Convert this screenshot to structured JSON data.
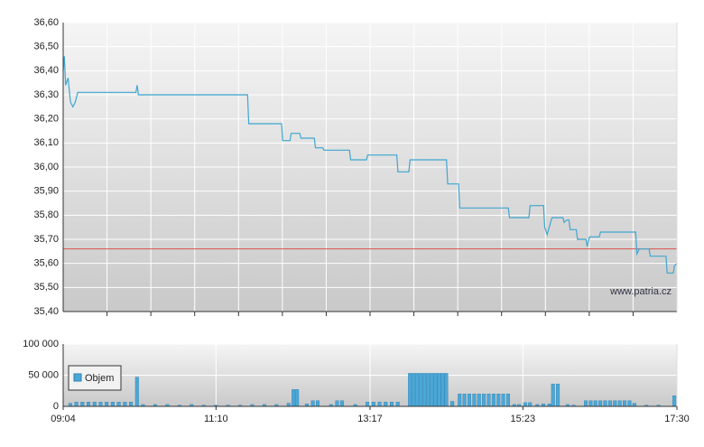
{
  "chart_data": [
    {
      "type": "line",
      "watermark": "www.patria.cz",
      "xlim": [
        "09:04",
        "17:30"
      ],
      "ylim": [
        35.4,
        36.6
      ],
      "yticks": [
        {
          "value": 35.4,
          "label": "35,40"
        },
        {
          "value": 35.5,
          "label": "35,50"
        },
        {
          "value": 35.6,
          "label": "35,60"
        },
        {
          "value": 35.7,
          "label": "35,70"
        },
        {
          "value": 35.8,
          "label": "35,80"
        },
        {
          "value": 35.9,
          "label": "35,90"
        },
        {
          "value": 36.0,
          "label": "36,00"
        },
        {
          "value": 36.1,
          "label": "36,10"
        },
        {
          "value": 36.2,
          "label": "36,20"
        },
        {
          "value": 36.3,
          "label": "36,30"
        },
        {
          "value": 36.4,
          "label": "36,40"
        },
        {
          "value": 36.5,
          "label": "36,50"
        },
        {
          "value": 36.6,
          "label": "36,60"
        }
      ],
      "reference_line": 35.66,
      "reference_color": "#d9534f",
      "grid": true,
      "x": [
        "09:04",
        "09:05",
        "09:06",
        "09:08",
        "09:10",
        "09:12",
        "09:14",
        "09:16",
        "10:04",
        "10:05",
        "10:06",
        "11:36",
        "11:37",
        "12:04",
        "12:05",
        "12:11",
        "12:12",
        "12:19",
        "12:20",
        "12:31",
        "12:32",
        "12:38",
        "12:39",
        "13:00",
        "13:01",
        "13:14",
        "13:15",
        "13:39",
        "13:40",
        "13:49",
        "13:50",
        "14:20",
        "14:21",
        "14:30",
        "14:31",
        "15:11",
        "15:12",
        "15:28",
        "15:29",
        "15:40",
        "15:41",
        "15:43",
        "15:47",
        "15:56",
        "15:57",
        "15:59",
        "16:01",
        "16:02",
        "16:07",
        "16:08",
        "16:15",
        "16:16",
        "16:18",
        "16:26",
        "16:27",
        "16:56",
        "16:57",
        "16:59",
        "17:07",
        "17:08",
        "17:21",
        "17:22",
        "17:27",
        "17:28",
        "17:30"
      ],
      "series": [
        {
          "color": "#3ea6d0",
          "values": [
            36.4,
            36.46,
            36.34,
            36.37,
            36.27,
            36.25,
            36.27,
            36.31,
            36.31,
            36.34,
            36.3,
            36.3,
            36.18,
            36.18,
            36.11,
            36.11,
            36.14,
            36.14,
            36.12,
            36.12,
            36.08,
            36.08,
            36.07,
            36.07,
            36.03,
            36.03,
            36.05,
            36.05,
            35.98,
            35.98,
            36.03,
            36.03,
            35.93,
            35.93,
            35.83,
            35.83,
            35.79,
            35.79,
            35.84,
            35.84,
            35.75,
            35.72,
            35.79,
            35.79,
            35.77,
            35.78,
            35.78,
            35.74,
            35.74,
            35.7,
            35.7,
            35.67,
            35.71,
            35.71,
            35.73,
            35.73,
            35.64,
            35.66,
            35.66,
            35.63,
            35.63,
            35.56,
            35.56,
            35.59,
            35.6
          ]
        }
      ]
    },
    {
      "type": "bar",
      "xlim": [
        "09:04",
        "17:30"
      ],
      "xticks": [
        "09:04",
        "11:10",
        "13:17",
        "15:23",
        "17:30"
      ],
      "ylim": [
        0,
        100000
      ],
      "yticks": [
        0,
        {
          "value": 50000,
          "label": "50 000"
        },
        {
          "value": 100000,
          "label": "100 000"
        }
      ],
      "grid": true,
      "x": [
        "09:10",
        "09:15",
        "09:20",
        "09:25",
        "09:30",
        "09:35",
        "09:40",
        "09:45",
        "09:50",
        "09:55",
        "10:00",
        "10:05",
        "10:10",
        "10:20",
        "10:30",
        "10:40",
        "10:50",
        "11:00",
        "11:10",
        "11:20",
        "11:30",
        "11:40",
        "11:50",
        "12:00",
        "12:10",
        "12:14",
        "12:17",
        "12:25",
        "12:30",
        "12:34",
        "12:45",
        "12:50",
        "12:54",
        "13:05",
        "13:15",
        "13:20",
        "13:25",
        "13:30",
        "13:35",
        "13:40",
        "13:50",
        "13:53",
        "13:56",
        "13:59",
        "14:02",
        "14:05",
        "14:08",
        "14:11",
        "14:14",
        "14:17",
        "14:20",
        "14:25",
        "14:31",
        "14:35",
        "14:39",
        "14:43",
        "14:47",
        "14:51",
        "14:55",
        "14:59",
        "15:03",
        "15:07",
        "15:11",
        "15:16",
        "15:20",
        "15:25",
        "15:29",
        "15:35",
        "15:40",
        "15:45",
        "15:48",
        "15:52",
        "16:00",
        "16:05",
        "16:15",
        "16:19",
        "16:23",
        "16:27",
        "16:31",
        "16:35",
        "16:39",
        "16:43",
        "16:47",
        "16:51",
        "16:55",
        "17:05",
        "17:15",
        "17:28"
      ],
      "series": [
        {
          "name": "Objem",
          "color": "#4aa8d8",
          "values": [
            5000,
            7000,
            7000,
            7000,
            7000,
            7000,
            7000,
            7000,
            7000,
            7000,
            7000,
            47000,
            3000,
            3000,
            3000,
            2000,
            3000,
            2000,
            2000,
            2000,
            2000,
            3000,
            3000,
            3000,
            5000,
            27000,
            27000,
            4000,
            9000,
            9000,
            3000,
            9000,
            9000,
            3000,
            7000,
            7000,
            7000,
            7000,
            7000,
            7000,
            53000,
            53000,
            53000,
            53000,
            53000,
            53000,
            53000,
            53000,
            53000,
            53000,
            53000,
            8000,
            20000,
            20000,
            20000,
            20000,
            20000,
            20000,
            20000,
            20000,
            20000,
            20000,
            20000,
            3000,
            3000,
            6000,
            6000,
            3000,
            4000,
            4000,
            36000,
            36000,
            3000,
            2000,
            9000,
            9000,
            9000,
            9000,
            9000,
            9000,
            9000,
            9000,
            9000,
            9000,
            5000,
            2000,
            2000,
            17000
          ]
        }
      ]
    }
  ]
}
